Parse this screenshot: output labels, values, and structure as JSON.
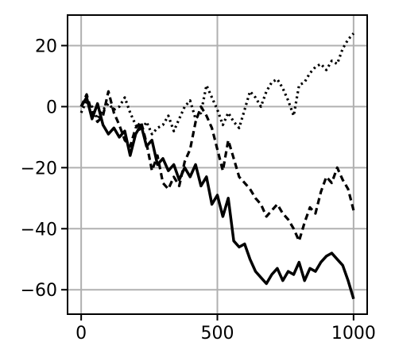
{
  "chart_data": {
    "type": "line",
    "title": "",
    "xlabel": "",
    "ylabel": "",
    "xlim": [
      -50,
      1050
    ],
    "ylim": [
      -68,
      30
    ],
    "grid": true,
    "legend": "none",
    "x_ticks": [
      0,
      500,
      1000
    ],
    "x_tick_labels": [
      "0",
      "500",
      "1000"
    ],
    "y_ticks": [
      20,
      0,
      -20,
      -40,
      -60
    ],
    "y_tick_labels": [
      "20",
      "0",
      "−20",
      "−40",
      "−60"
    ],
    "colors": {
      "line": "#000000",
      "grid": "#b0b0b0",
      "frame": "#000000"
    },
    "series": [
      {
        "style": "solid",
        "x": [
          0,
          20,
          40,
          60,
          80,
          100,
          120,
          140,
          160,
          180,
          200,
          220,
          240,
          260,
          280,
          300,
          320,
          340,
          360,
          380,
          400,
          420,
          440,
          460,
          480,
          500,
          520,
          540,
          560,
          580,
          600,
          620,
          640,
          660,
          680,
          700,
          720,
          740,
          760,
          780,
          800,
          820,
          840,
          860,
          880,
          900,
          920,
          940,
          960,
          980,
          1000
        ],
        "values": [
          0,
          3,
          -4,
          1,
          -6,
          -9,
          -7,
          -10,
          -8,
          -16,
          -9,
          -6,
          -13,
          -11,
          -19,
          -17,
          -21,
          -19,
          -24,
          -20,
          -23,
          -19,
          -26,
          -23,
          -32,
          -29,
          -36,
          -30,
          -44,
          -46,
          -45,
          -50,
          -54,
          -56,
          -58,
          -55,
          -53,
          -57,
          -54,
          -55,
          -51,
          -57,
          -53,
          -54,
          -51,
          -49,
          -48,
          -50,
          -52,
          -57,
          -63
        ]
      },
      {
        "style": "dashed",
        "x": [
          0,
          20,
          40,
          60,
          80,
          100,
          120,
          140,
          160,
          180,
          200,
          220,
          240,
          260,
          280,
          300,
          320,
          340,
          360,
          380,
          400,
          420,
          440,
          460,
          480,
          500,
          520,
          540,
          560,
          580,
          600,
          620,
          640,
          660,
          680,
          700,
          720,
          740,
          760,
          780,
          800,
          820,
          840,
          860,
          880,
          900,
          920,
          940,
          960,
          980,
          1000
        ],
        "values": [
          0,
          4,
          -2,
          -5,
          -3,
          5,
          -2,
          -6,
          -11,
          -13,
          -7,
          -5,
          -12,
          -21,
          -16,
          -25,
          -27,
          -23,
          -26,
          -18,
          -14,
          -5,
          0,
          -3,
          -7,
          -14,
          -21,
          -11,
          -17,
          -23,
          -25,
          -27,
          -30,
          -32,
          -36,
          -34,
          -32,
          -35,
          -37,
          -40,
          -44,
          -38,
          -33,
          -35,
          -28,
          -23,
          -25,
          -20,
          -24,
          -27,
          -34
        ]
      },
      {
        "style": "dotted",
        "x": [
          0,
          20,
          40,
          60,
          80,
          100,
          120,
          140,
          160,
          180,
          200,
          220,
          240,
          260,
          280,
          300,
          320,
          340,
          360,
          380,
          400,
          420,
          440,
          460,
          480,
          500,
          520,
          540,
          560,
          580,
          600,
          620,
          640,
          660,
          680,
          700,
          720,
          740,
          760,
          780,
          800,
          820,
          840,
          860,
          880,
          900,
          920,
          940,
          960,
          980,
          1000
        ],
        "values": [
          -2,
          2,
          0,
          -4,
          -1,
          1,
          -1,
          0,
          3,
          -2,
          -6,
          -8,
          -5,
          -9,
          -7,
          -6,
          -3,
          -8,
          -4,
          0,
          2,
          -4,
          -2,
          7,
          3,
          -1,
          -6,
          -2,
          -5,
          -7,
          -1,
          5,
          3,
          0,
          5,
          8,
          9,
          6,
          2,
          -3,
          7,
          8,
          11,
          13,
          14,
          12,
          15,
          14,
          19,
          22,
          24
        ]
      }
    ]
  }
}
